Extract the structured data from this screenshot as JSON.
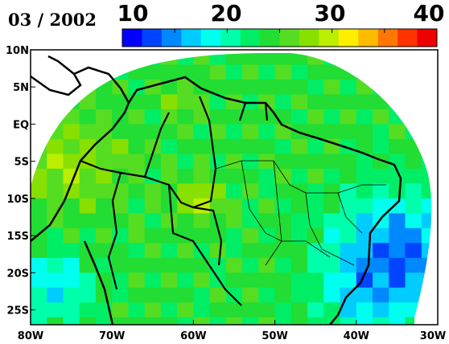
{
  "title": "03 / 2002",
  "colorbar": {
    "tick_labels": [
      "10",
      "20",
      "30",
      "40"
    ],
    "min": 10,
    "max": 40,
    "colors": [
      "#0000ff",
      "#0044ff",
      "#0088ff",
      "#00ccff",
      "#00ffee",
      "#00ffaa",
      "#00ee66",
      "#22dd33",
      "#55dd22",
      "#88e000",
      "#bbee00",
      "#ffee00",
      "#ffbb00",
      "#ff7700",
      "#ff3300",
      "#ee0000"
    ]
  },
  "lat_labels": [
    "10N",
    "5N",
    "EQ",
    "5S",
    "10S",
    "15S",
    "20S",
    "25S"
  ],
  "lon_labels": [
    "80W",
    "70W",
    "60W",
    "50W",
    "40W",
    "30W"
  ],
  "grid": {
    "lon_min": -80,
    "lon_max": -30,
    "lat_min": -27,
    "lat_max": 10,
    "cell_deg": 2,
    "field": "Gridded field over South America shown by the cell colours; scale 10 to 40"
  },
  "chart_data": {
    "type": "heatmap",
    "title": "03 / 2002",
    "xlabel": "",
    "ylabel": "",
    "x_ticks": [
      "80W",
      "70W",
      "60W",
      "50W",
      "40W",
      "30W"
    ],
    "y_ticks": [
      "10N",
      "5N",
      "EQ",
      "5S",
      "10S",
      "15S",
      "20S",
      "25S"
    ],
    "color_range": [
      10,
      40
    ]
  }
}
